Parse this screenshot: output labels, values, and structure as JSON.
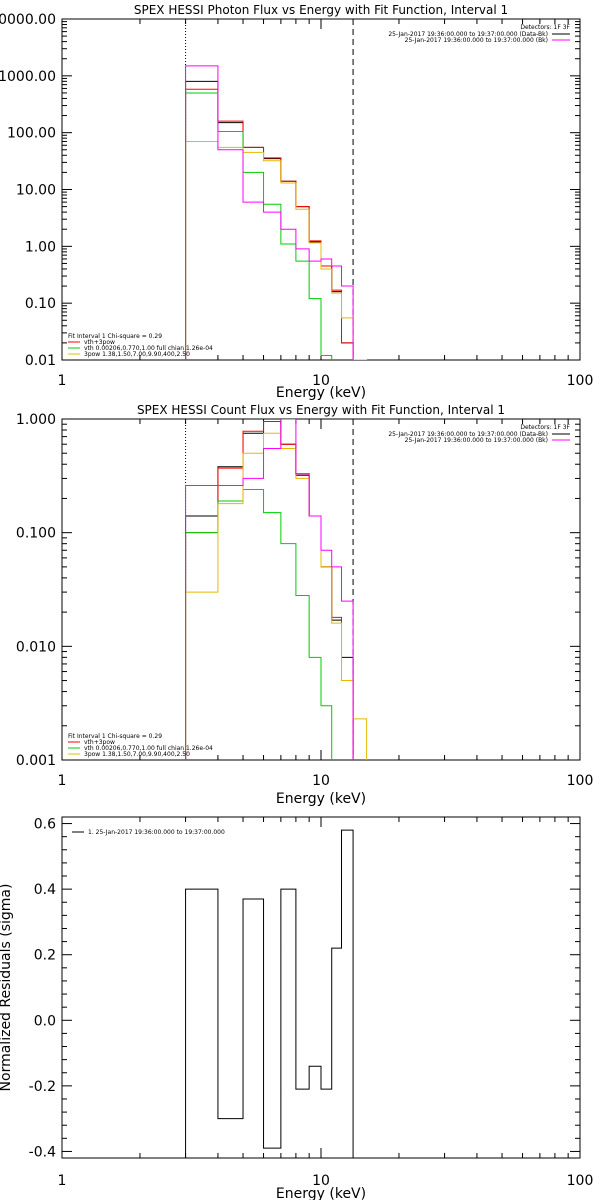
{
  "chart_data": [
    {
      "type": "line",
      "title": "SPEX HESSI Photon Flux vs Energy with Fit Function, Interval 1",
      "xlabel": "Energy (keV)",
      "ylabel": "",
      "xscale": "log",
      "yscale": "log",
      "xlim": [
        1,
        100
      ],
      "ylim": [
        0.01,
        10000
      ],
      "x_ticks": [
        "1",
        "10",
        "100"
      ],
      "y_ticks": [
        "0.01",
        "0.10",
        "1.00",
        "10.00",
        "100.00",
        "1000.00",
        "0000.00"
      ],
      "detectors_label": "Detectors: 1F 3F",
      "legend_right": [
        {
          "text": "25-Jan-2017 19:36:00.000 to 19:37:00.000 (Data-Bk)",
          "color": "#000000"
        },
        {
          "text": "25-Jan-2017 19:36:00.000 to 19:37:00.000 (Bk)",
          "color": "#ff00ff"
        }
      ],
      "legend_left": [
        {
          "text": "Fit Interval 1    Chi-square = 0.29",
          "color": ""
        },
        {
          "text": "vth+3pow",
          "color": "#ff0000"
        },
        {
          "text": "vth 0.00206,0.770,1.00   full chian 1.26e-04",
          "color": "#00cc00"
        },
        {
          "text": "3pow 1.38,1.50,7.00,9.90,400,2.50",
          "color": "#e8b800"
        }
      ],
      "vlines": [
        {
          "x": 3.0,
          "style": "dotted"
        },
        {
          "x": 13.3,
          "style": "dashed"
        }
      ],
      "bin_edges": [
        3,
        4,
        5,
        6,
        7,
        8,
        9,
        10,
        11,
        12,
        13.3,
        15
      ],
      "series": [
        {
          "name": "Data-Bk",
          "color": "#000000",
          "values": [
            800,
            150,
            55,
            35,
            14,
            5,
            1.2,
            0.45,
            0.16,
            0.02,
            null
          ]
        },
        {
          "name": "vth+3pow",
          "color": "#ff0000",
          "values": [
            580,
            160,
            55,
            36,
            14,
            5,
            1.25,
            0.45,
            0.17,
            0.02,
            null
          ]
        },
        {
          "name": "vth",
          "color": "#00cc00",
          "values": [
            500,
            105,
            20,
            5.5,
            1.1,
            0.55,
            0.12,
            0.012,
            null,
            null,
            null
          ]
        },
        {
          "name": "3pow",
          "color": "#e8b800",
          "values": [
            70,
            55,
            45,
            32,
            13,
            4.5,
            1.15,
            0.4,
            0.15,
            0.055,
            0.01
          ]
        },
        {
          "name": "Bk",
          "color": "#ff00ff",
          "values": [
            1500,
            50,
            6,
            4,
            2,
            0.9,
            0.55,
            0.6,
            0.45,
            0.2,
            null
          ]
        }
      ]
    },
    {
      "type": "line",
      "title": "SPEX HESSI Count Flux vs Energy with Fit Function, Interval 1",
      "xlabel": "Energy (keV)",
      "ylabel": "",
      "xscale": "log",
      "yscale": "log",
      "xlim": [
        1,
        100
      ],
      "ylim": [
        0.001,
        1.0
      ],
      "x_ticks": [
        "1",
        "10",
        "100"
      ],
      "y_ticks": [
        "0.001",
        "0.010",
        "0.100",
        "1.000"
      ],
      "detectors_label": "Detectors: 1F 3F",
      "legend_right": [
        {
          "text": "25-Jan-2017 19:36:00.000 to 19:37:00.000 (Data-Bk)",
          "color": "#000000"
        },
        {
          "text": "25-Jan-2017 19:36:00.000 to 19:37:00.000 (Bk)",
          "color": "#ff00ff"
        }
      ],
      "legend_left": [
        {
          "text": "Fit Interval 1    Chi-square = 0.29",
          "color": ""
        },
        {
          "text": "vth+3pow",
          "color": "#ff0000"
        },
        {
          "text": "vth 0.00206,0.770,1.00   full chian 1.26e-04",
          "color": "#00cc00"
        },
        {
          "text": "3pow 1.38,1.50,7.00,9.90,400,2.50",
          "color": "#e8b800"
        }
      ],
      "vlines": [
        {
          "x": 3.0,
          "style": "dotted"
        },
        {
          "x": 13.3,
          "style": "dashed"
        }
      ],
      "bin_edges": [
        3,
        4,
        5,
        6,
        7,
        8,
        9,
        10,
        11,
        12,
        13.3,
        15
      ],
      "series": [
        {
          "name": "Data-Bk",
          "color": "#000000",
          "values": [
            0.14,
            0.38,
            0.75,
            0.95,
            0.6,
            0.32,
            0.14,
            0.05,
            0.017,
            0.008,
            null
          ]
        },
        {
          "name": "vth+3pow",
          "color": "#ff0000",
          "values": [
            0.1,
            0.37,
            0.78,
            0.95,
            0.6,
            0.33,
            0.14,
            0.05,
            0.018,
            0.005,
            null
          ]
        },
        {
          "name": "vth",
          "color": "#00cc00",
          "values": [
            0.1,
            0.19,
            0.24,
            0.15,
            0.08,
            0.028,
            0.008,
            0.003,
            0.0009,
            null,
            null
          ]
        },
        {
          "name": "3pow",
          "color": "#e8b800",
          "values": [
            0.03,
            0.18,
            0.5,
            0.75,
            0.55,
            0.3,
            0.14,
            0.05,
            0.016,
            0.005,
            0.0023
          ]
        },
        {
          "name": "Bk",
          "color": "#ff00ff",
          "values": [
            0.26,
            0.26,
            0.3,
            0.55,
            1.0,
            0.33,
            0.14,
            0.07,
            0.05,
            0.025,
            null
          ]
        }
      ]
    },
    {
      "type": "line",
      "title": "",
      "xlabel": "Energy (keV)",
      "ylabel": "Normalized Residuals (sigma)",
      "xscale": "log",
      "yscale": "linear",
      "xlim": [
        1,
        100
      ],
      "ylim": [
        -0.42,
        0.62
      ],
      "x_ticks": [
        "1",
        "10",
        "100"
      ],
      "y_ticks": [
        "-0.4",
        "-0.2",
        "0.0",
        "0.2",
        "0.4",
        "0.6"
      ],
      "y_tick_values": [
        -0.4,
        -0.2,
        0.0,
        0.2,
        0.4,
        0.6
      ],
      "legend": [
        {
          "text": "1. 25-Jan-2017 19:36:00.000 to 19:37:00.000",
          "color": "#000000"
        }
      ],
      "bin_edges": [
        3,
        4,
        5,
        6,
        7,
        8,
        9,
        10,
        11,
        12,
        13.3
      ],
      "series": [
        {
          "name": "1. 25-Jan-2017 19:36:00.000 to 19:37:00.000",
          "color": "#000000",
          "values": [
            0.4,
            -0.3,
            0.37,
            -0.39,
            0.4,
            -0.21,
            -0.14,
            -0.21,
            0.22,
            0.58
          ]
        }
      ]
    }
  ]
}
